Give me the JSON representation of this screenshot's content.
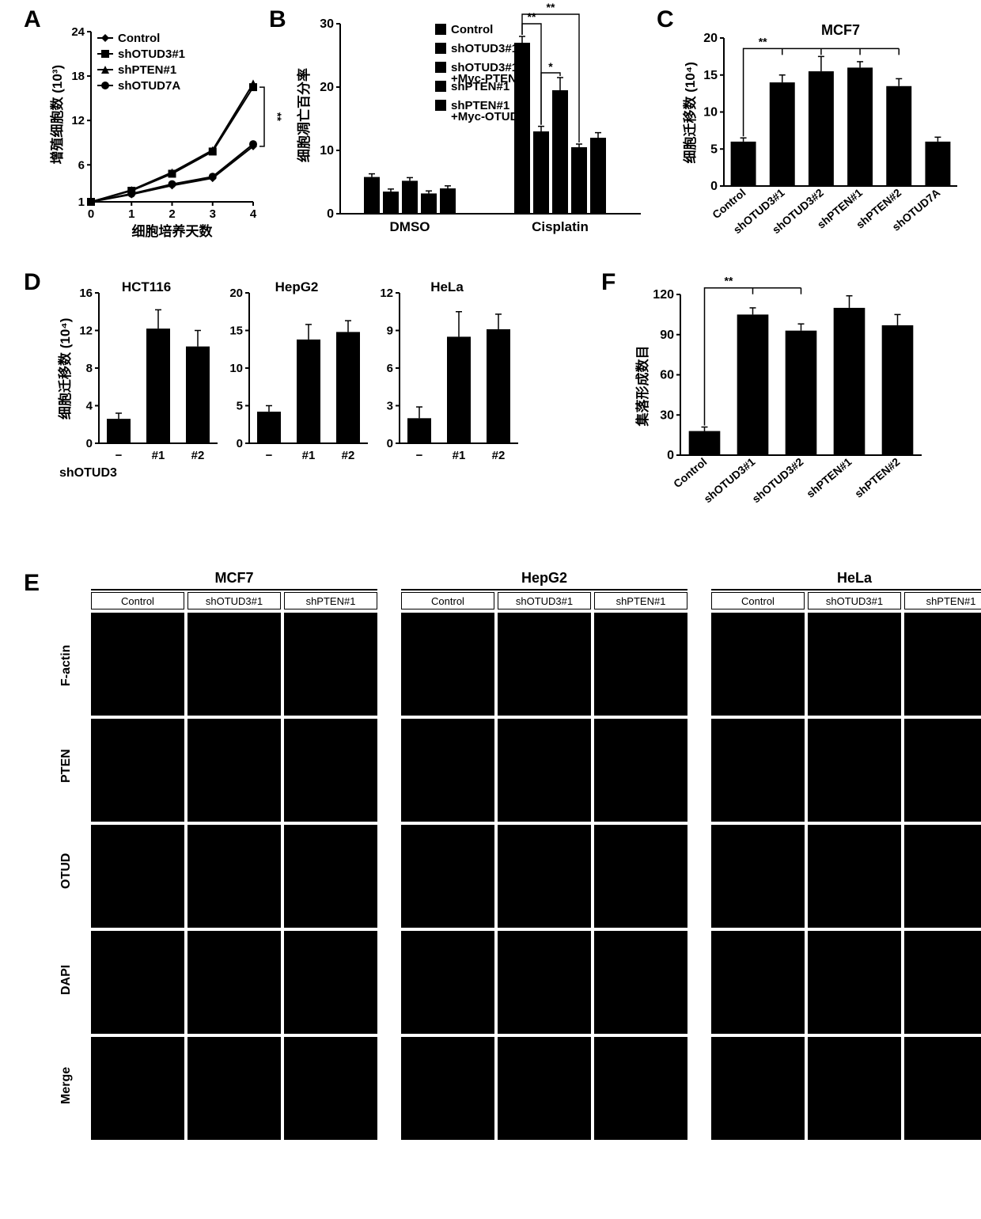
{
  "panelA": {
    "label": "A",
    "ylabel": "增殖细胞数 (10³)",
    "xlabel": "细胞培养天数",
    "yticks": [
      1,
      6,
      12,
      18,
      24
    ],
    "xticks": [
      0,
      1,
      2,
      3,
      4
    ],
    "series": [
      {
        "name": "Control",
        "marker": "diamond",
        "values": [
          1,
          2.0,
          3.2,
          4.2,
          8.5
        ]
      },
      {
        "name": "shOTUD3#1",
        "marker": "square",
        "values": [
          1,
          2.5,
          4.8,
          7.8,
          16.5
        ]
      },
      {
        "name": "shPTEN#1",
        "marker": "triangle",
        "values": [
          1,
          2.6,
          5.0,
          8.0,
          17.0
        ]
      },
      {
        "name": "shOTUD7A",
        "marker": "circle",
        "values": [
          1,
          2.1,
          3.4,
          4.4,
          8.8
        ]
      }
    ],
    "sig": "**"
  },
  "panelB": {
    "label": "B",
    "ylabel": "细胞凋亡百分率",
    "yticks": [
      0,
      10,
      20,
      30
    ],
    "groups": [
      "DMSO",
      "Cisplatin"
    ],
    "legend": [
      "Control",
      "shOTUD3#1",
      "shOTUD3#1\n+Myc-PTEN",
      "shPTEN#1",
      "shPTEN#1\n+Myc-OTUD"
    ],
    "values": {
      "DMSO": [
        5.8,
        3.5,
        5.2,
        3.2,
        4.0
      ],
      "Cisplatin": [
        27,
        13,
        19.5,
        10.5,
        12
      ]
    },
    "errors": {
      "DMSO": [
        0.5,
        0.4,
        0.5,
        0.4,
        0.4
      ],
      "Cisplatin": [
        1.0,
        0.8,
        2.0,
        0.5,
        0.8
      ]
    }
  },
  "panelC": {
    "label": "C",
    "title": "MCF7",
    "ylabel": "细胞迁移数 (10⁴)",
    "yticks": [
      0,
      5,
      10,
      15,
      20
    ],
    "categories": [
      "Control",
      "shOTUD3#1",
      "shOTUD3#2",
      "shPTEN#1",
      "shPTEN#2",
      "shOTUD7A"
    ],
    "values": [
      6.0,
      14.0,
      15.5,
      16.0,
      13.5,
      6.0
    ],
    "errors": [
      0.5,
      1.0,
      2.0,
      0.8,
      1.0,
      0.6
    ],
    "sig": "**"
  },
  "panelD": {
    "label": "D",
    "ylabel": "细胞迁移数 (10⁴)",
    "xrow_label": "shOTUD3",
    "sub": [
      {
        "title": "HCT116",
        "yticks": [
          0,
          4,
          8,
          12,
          16
        ],
        "values": [
          2.6,
          12.2,
          10.3
        ],
        "errors": [
          0.6,
          2.0,
          1.7
        ],
        "xlabels": [
          "−",
          "#1",
          "#2"
        ]
      },
      {
        "title": "HepG2",
        "yticks": [
          0,
          5,
          10,
          15,
          20
        ],
        "values": [
          4.2,
          13.8,
          14.8
        ],
        "errors": [
          0.8,
          2.0,
          1.5
        ],
        "xlabels": [
          "−",
          "#1",
          "#2"
        ]
      },
      {
        "title": "HeLa",
        "yticks": [
          0,
          3,
          6,
          9,
          12
        ],
        "values": [
          2.0,
          8.5,
          9.1
        ],
        "errors": [
          0.9,
          2.0,
          1.2
        ],
        "xlabels": [
          "−",
          "#1",
          "#2"
        ]
      }
    ]
  },
  "panelF": {
    "label": "F",
    "ylabel": "集落形成数目",
    "yticks": [
      0,
      30,
      60,
      90,
      120
    ],
    "categories": [
      "Control",
      "shOTUD3#1",
      "shOTUD3#2",
      "shPTEN#1",
      "shPTEN#2"
    ],
    "values": [
      18,
      105,
      93,
      110,
      97
    ],
    "errors": [
      3,
      5,
      5,
      9,
      8
    ],
    "sig": "**"
  },
  "panelE": {
    "label": "E",
    "cellLines": [
      "MCF7",
      "HepG2",
      "HeLa"
    ],
    "cols": [
      "Control",
      "shOTUD3#1",
      "shPTEN#1"
    ],
    "rows": [
      "F-actin",
      "PTEN",
      "OTUD",
      "DAPI",
      "Merge"
    ]
  }
}
